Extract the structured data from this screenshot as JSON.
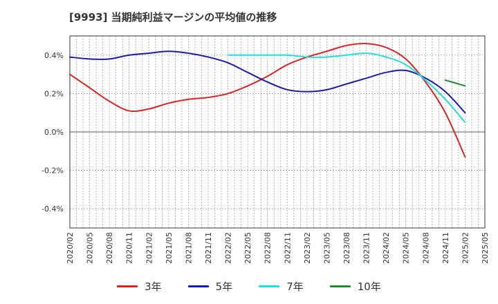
{
  "chart_data": {
    "type": "line",
    "title": "[9993]  当期純利益マージンの平均値の推移",
    "xlabel": "",
    "ylabel": "",
    "x_ticks": [
      "2020/02",
      "2020/05",
      "2020/08",
      "2020/11",
      "2021/02",
      "2021/05",
      "2021/08",
      "2021/11",
      "2022/02",
      "2022/05",
      "2022/08",
      "2022/11",
      "2023/02",
      "2023/05",
      "2023/08",
      "2023/11",
      "2024/02",
      "2024/05",
      "2024/08",
      "2024/11",
      "2025/02",
      "2025/05"
    ],
    "y_ticks": [
      "0.4%",
      "0.2%",
      "0.0%",
      "-0.2%",
      "-0.4%"
    ],
    "y_tick_values": [
      0.4,
      0.2,
      0.0,
      -0.2,
      -0.4
    ],
    "ylim": [
      -0.5,
      0.5
    ],
    "grid": true,
    "legend_position": "bottom",
    "series": [
      {
        "name": "3年",
        "color": "#dd2222",
        "points": [
          [
            "2020/02",
            0.3
          ],
          [
            "2020/05",
            0.23
          ],
          [
            "2020/08",
            0.16
          ],
          [
            "2020/11",
            0.11
          ],
          [
            "2021/02",
            0.12
          ],
          [
            "2021/05",
            0.15
          ],
          [
            "2021/08",
            0.17
          ],
          [
            "2021/11",
            0.18
          ],
          [
            "2022/02",
            0.2
          ],
          [
            "2022/05",
            0.24
          ],
          [
            "2022/08",
            0.29
          ],
          [
            "2022/11",
            0.35
          ],
          [
            "2023/02",
            0.39
          ],
          [
            "2023/05",
            0.42
          ],
          [
            "2023/08",
            0.45
          ],
          [
            "2023/11",
            0.46
          ],
          [
            "2024/02",
            0.44
          ],
          [
            "2024/05",
            0.38
          ],
          [
            "2024/08",
            0.26
          ],
          [
            "2024/11",
            0.1
          ],
          [
            "2025/02",
            -0.13
          ]
        ]
      },
      {
        "name": "5年",
        "color": "#1a1aaa",
        "points": [
          [
            "2020/02",
            0.39
          ],
          [
            "2020/05",
            0.38
          ],
          [
            "2020/08",
            0.38
          ],
          [
            "2020/11",
            0.4
          ],
          [
            "2021/02",
            0.41
          ],
          [
            "2021/05",
            0.42
          ],
          [
            "2021/08",
            0.41
          ],
          [
            "2021/11",
            0.39
          ],
          [
            "2022/02",
            0.36
          ],
          [
            "2022/05",
            0.31
          ],
          [
            "2022/08",
            0.26
          ],
          [
            "2022/11",
            0.22
          ],
          [
            "2023/02",
            0.21
          ],
          [
            "2023/05",
            0.22
          ],
          [
            "2023/08",
            0.25
          ],
          [
            "2023/11",
            0.28
          ],
          [
            "2024/02",
            0.31
          ],
          [
            "2024/05",
            0.32
          ],
          [
            "2024/08",
            0.28
          ],
          [
            "2024/11",
            0.21
          ],
          [
            "2025/02",
            0.1
          ]
        ]
      },
      {
        "name": "7年",
        "color": "#22dddd",
        "points": [
          [
            "2022/02",
            0.4
          ],
          [
            "2022/05",
            0.4
          ],
          [
            "2022/08",
            0.4
          ],
          [
            "2022/11",
            0.4
          ],
          [
            "2023/02",
            0.39
          ],
          [
            "2023/05",
            0.39
          ],
          [
            "2023/08",
            0.4
          ],
          [
            "2023/11",
            0.41
          ],
          [
            "2024/02",
            0.39
          ],
          [
            "2024/05",
            0.35
          ],
          [
            "2024/08",
            0.27
          ],
          [
            "2024/11",
            0.17
          ],
          [
            "2025/02",
            0.05
          ]
        ]
      },
      {
        "name": "10年",
        "color": "#228833",
        "points": [
          [
            "2024/11",
            0.27
          ],
          [
            "2025/02",
            0.24
          ]
        ]
      }
    ]
  }
}
